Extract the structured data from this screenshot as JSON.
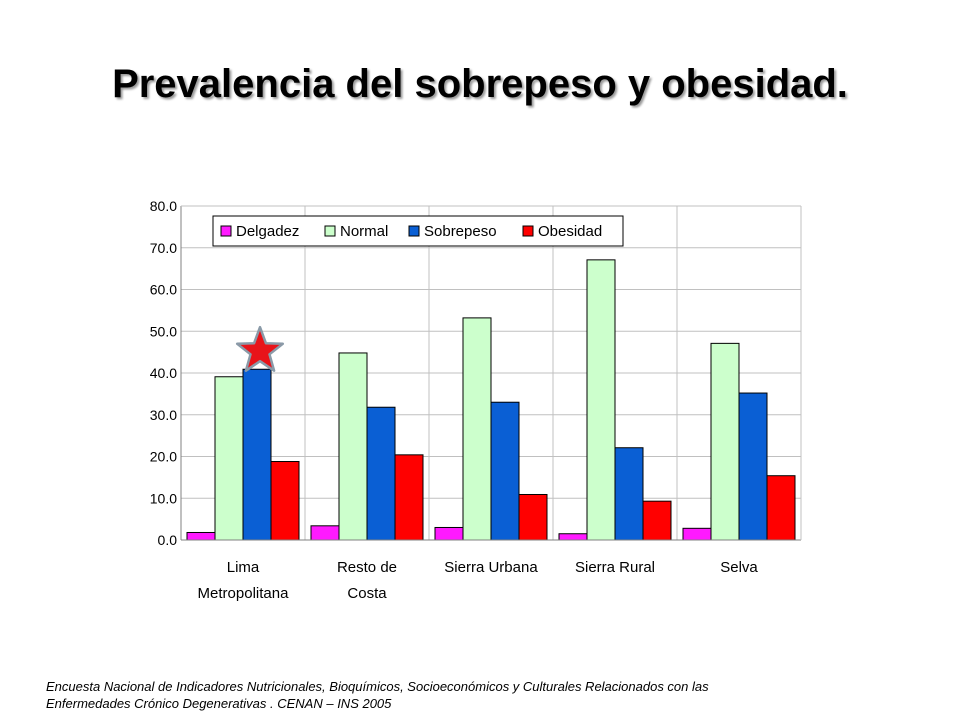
{
  "slide": {
    "title": "Prevalencia del sobrepeso y obesidad.",
    "source_line1": "Encuesta Nacional de Indicadores Nutricionales, Bioquímicos, Socioeconómicos y Culturales Relacionados con las",
    "source_line2": "Enfermedades Crónico Degenerativas . CENAN – INS 2005"
  },
  "highlight": {
    "icon": "red-star-icon",
    "category": "Lima Metropolitana",
    "series": "Sobrepeso",
    "color": "#e8141a"
  },
  "chart_data": {
    "type": "bar",
    "title": "",
    "xlabel": "",
    "ylabel": "",
    "ylim": [
      0,
      80
    ],
    "yticks": [
      "0.0",
      "10.0",
      "20.0",
      "30.0",
      "40.0",
      "50.0",
      "60.0",
      "70.0",
      "80.0"
    ],
    "grid": true,
    "legend_position": "top",
    "categories": [
      [
        "Lima",
        "Metropolitana"
      ],
      [
        "Resto de",
        "Costa"
      ],
      [
        "Sierra Urbana"
      ],
      [
        "Sierra Rural"
      ],
      [
        "Selva"
      ]
    ],
    "series": [
      {
        "name": "Delgadez",
        "color": "#ff1aff",
        "values": [
          1.8,
          3.4,
          3.0,
          1.5,
          2.8
        ]
      },
      {
        "name": "Normal",
        "color": "#ccffcc",
        "values": [
          39.1,
          44.8,
          53.2,
          67.1,
          47.1
        ]
      },
      {
        "name": "Sobrepeso",
        "color": "#0a5fd4",
        "values": [
          40.9,
          31.8,
          33.0,
          22.1,
          35.2
        ]
      },
      {
        "name": "Obesidad",
        "color": "#ff0000",
        "values": [
          18.8,
          20.4,
          10.9,
          9.3,
          15.4
        ]
      }
    ]
  }
}
